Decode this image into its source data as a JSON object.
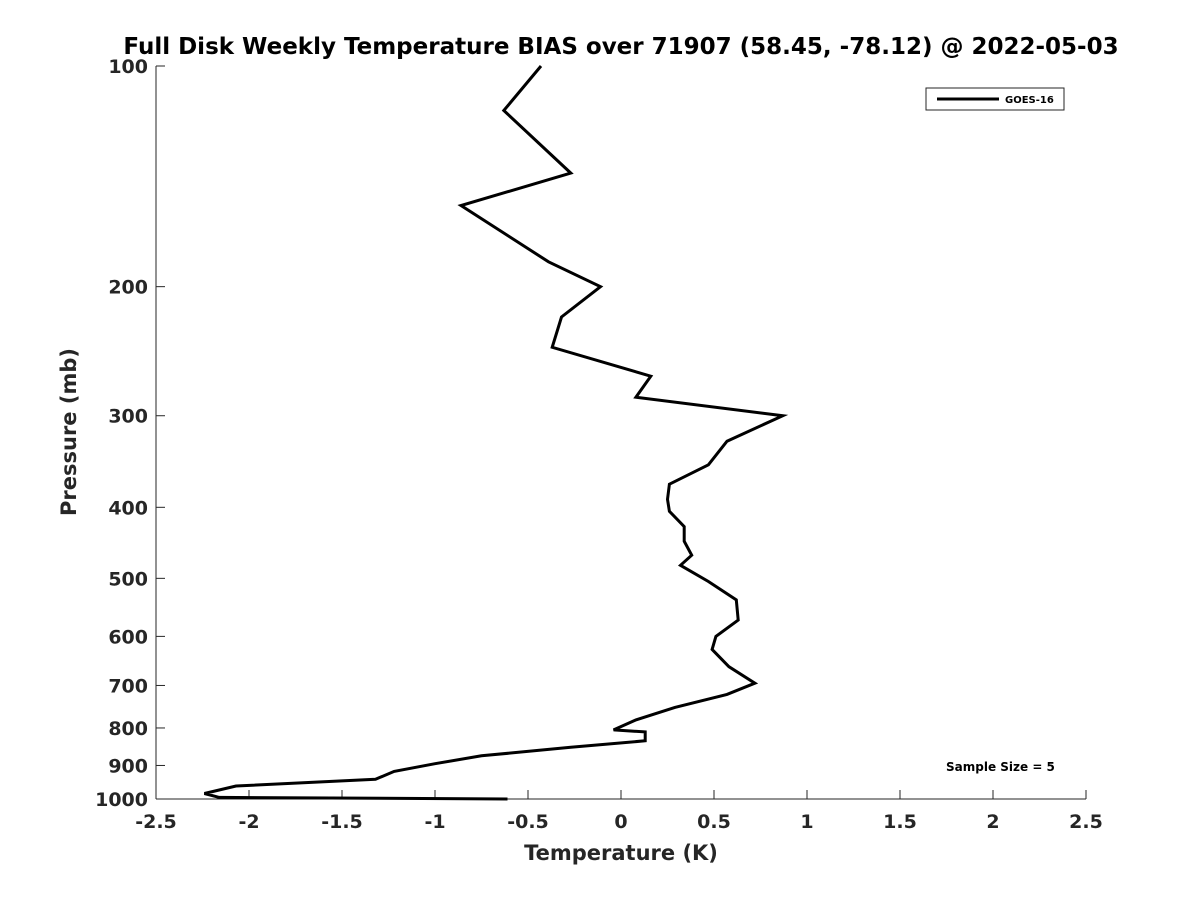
{
  "chart_data": {
    "type": "line",
    "title": "Full Disk Weekly Temperature BIAS over 71907 (58.45, -78.12) @ 2022-05-03",
    "xlabel": "Temperature (K)",
    "ylabel": "Pressure (mb)",
    "xlim": [
      -2.5,
      2.5
    ],
    "ylim": [
      100,
      1000
    ],
    "yscale": "log",
    "y_reversed": true,
    "x_ticks": [
      -2.5,
      -2,
      -1.5,
      -1,
      -0.5,
      0,
      0.5,
      1,
      1.5,
      2,
      2.5
    ],
    "x_tick_labels": [
      "-2.5",
      "-2",
      "-1.5",
      "-1",
      "-0.5",
      "0",
      "0.5",
      "1",
      "1.5",
      "2",
      "2.5"
    ],
    "y_ticks": [
      100,
      200,
      300,
      400,
      500,
      600,
      700,
      800,
      900,
      1000
    ],
    "y_tick_labels": [
      "100",
      "200",
      "300",
      "400",
      "500",
      "600",
      "700",
      "800",
      "900",
      "1000"
    ],
    "grid": false,
    "legend_position": "top-right",
    "annotation": "Sample Size = 5",
    "line_color": "#000000",
    "series": [
      {
        "name": "GOES-16",
        "x": [
          -0.43,
          -0.63,
          -0.27,
          -0.86,
          -0.39,
          -0.11,
          -0.32,
          -0.37,
          0.16,
          0.08,
          0.87,
          0.57,
          0.47,
          0.26,
          0.25,
          0.26,
          0.34,
          0.34,
          0.38,
          0.32,
          0.47,
          0.62,
          0.63,
          0.51,
          0.49,
          0.58,
          0.72,
          0.57,
          0.29,
          0.08,
          -0.04,
          0.13,
          0.13,
          -0.27,
          -0.75,
          -1.0,
          -1.22,
          -1.32,
          -2.07,
          -2.24,
          -2.16,
          -0.61
        ],
        "y": [
          100,
          115,
          140,
          155,
          185,
          200,
          220,
          242,
          265,
          283,
          300,
          325,
          350,
          372,
          390,
          405,
          425,
          445,
          465,
          480,
          505,
          535,
          570,
          600,
          625,
          660,
          695,
          720,
          750,
          780,
          805,
          810,
          833,
          850,
          873,
          895,
          917,
          940,
          960,
          983,
          995,
          1000
        ]
      }
    ]
  }
}
